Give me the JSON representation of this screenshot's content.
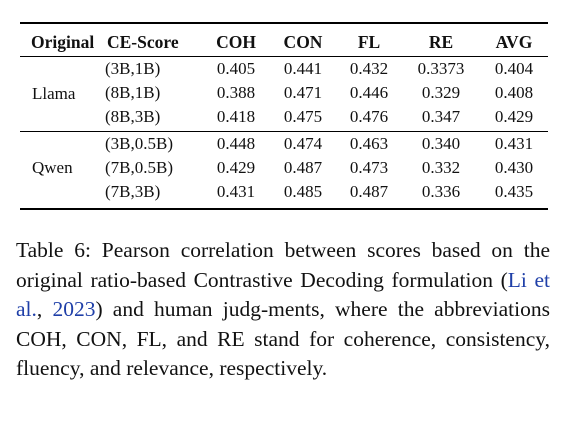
{
  "table": {
    "headers": {
      "original": "Original",
      "ce_score": "CE-Score",
      "coh": "COH",
      "con": "CON",
      "fl": "FL",
      "re": "RE",
      "avg": "AVG"
    },
    "groups": [
      {
        "model": "Llama",
        "rows": [
          {
            "config": "(3B,1B)",
            "coh": "0.405",
            "con": "0.441",
            "fl": "0.432",
            "re": "0.3373",
            "avg": "0.404"
          },
          {
            "config": "(8B,1B)",
            "coh": "0.388",
            "con": "0.471",
            "fl": "0.446",
            "re": "0.329",
            "avg": "0.408"
          },
          {
            "config": "(8B,3B)",
            "coh": "0.418",
            "con": "0.475",
            "fl": "0.476",
            "re": "0.347",
            "avg": "0.429"
          }
        ]
      },
      {
        "model": "Qwen",
        "rows": [
          {
            "config": "(3B,0.5B)",
            "coh": "0.448",
            "con": "0.474",
            "fl": "0.463",
            "re": "0.340",
            "avg": "0.431"
          },
          {
            "config": "(7B,0.5B)",
            "coh": "0.429",
            "con": "0.487",
            "fl": "0.473",
            "re": "0.332",
            "avg": "0.430"
          },
          {
            "config": "(7B,3B)",
            "coh": "0.431",
            "con": "0.485",
            "fl": "0.487",
            "re": "0.336",
            "avg": "0.435"
          }
        ]
      }
    ]
  },
  "caption": {
    "text_before": "Table 6: Pearson correlation between scores based on the original ratio-based Contrastive Decoding formulation (",
    "cite_author": "Li et al.",
    "cite_sep": ", ",
    "cite_year": "2023",
    "text_after": ") and human judg-ments, where the abbreviations COH, CON, FL, and RE stand for coherence, consistency, fluency, and relevance, respectively.",
    "accent_color": "#1f3fa8"
  }
}
